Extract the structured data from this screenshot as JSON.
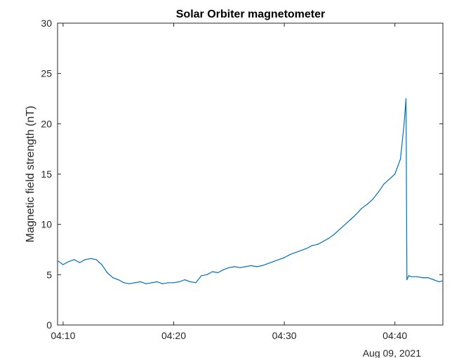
{
  "chart_data": {
    "type": "line",
    "title": "Solar Orbiter magnetometer",
    "xlabel": "",
    "ylabel": "Magnetic field strength (nT)",
    "date_label": "Aug 09, 2021",
    "xlim": [
      "04:09:30",
      "04:44:20"
    ],
    "ylim": [
      0,
      30
    ],
    "yticks": [
      0,
      5,
      10,
      15,
      20,
      25,
      30
    ],
    "xticks": [
      "04:10",
      "04:20",
      "04:30",
      "04:40"
    ],
    "grid": false,
    "line_color": "#0072BD",
    "series": [
      {
        "x": [
          "04:09:30",
          "04:10:00",
          "04:10:30",
          "04:11:00",
          "04:11:30",
          "04:12:00",
          "04:12:30",
          "04:13:00",
          "04:13:30",
          "04:14:00",
          "04:14:30",
          "04:15:00",
          "04:15:30",
          "04:16:00",
          "04:16:30",
          "04:17:00",
          "04:17:30",
          "04:18:00",
          "04:18:30",
          "04:19:00",
          "04:19:30",
          "04:20:00",
          "04:20:30",
          "04:21:00",
          "04:21:30",
          "04:22:00",
          "04:22:30",
          "04:23:00",
          "04:23:30",
          "04:24:00",
          "04:24:30",
          "04:25:00",
          "04:25:30",
          "04:26:00",
          "04:26:30",
          "04:27:00",
          "04:27:30",
          "04:28:00",
          "04:28:30",
          "04:29:00",
          "04:29:30",
          "04:30:00",
          "04:30:30",
          "04:31:00",
          "04:31:30",
          "04:32:00",
          "04:32:30",
          "04:33:00",
          "04:33:30",
          "04:34:00",
          "04:34:30",
          "04:35:00",
          "04:35:30",
          "04:36:00",
          "04:36:30",
          "04:37:00",
          "04:37:30",
          "04:38:00",
          "04:38:30",
          "04:39:00",
          "04:39:30",
          "04:40:00",
          "04:40:30",
          "04:40:50",
          "04:41:00",
          "04:41:05",
          "04:41:15",
          "04:41:30",
          "04:42:00",
          "04:42:30",
          "04:43:00",
          "04:43:30",
          "04:44:00",
          "04:44:20"
        ],
        "values": [
          6.4,
          6.0,
          6.3,
          6.5,
          6.2,
          6.5,
          6.6,
          6.5,
          6.0,
          5.2,
          4.7,
          4.5,
          4.2,
          4.1,
          4.2,
          4.3,
          4.1,
          4.2,
          4.3,
          4.1,
          4.2,
          4.2,
          4.3,
          4.5,
          4.3,
          4.2,
          4.9,
          5.0,
          5.3,
          5.2,
          5.5,
          5.7,
          5.8,
          5.7,
          5.8,
          5.9,
          5.8,
          5.9,
          6.1,
          6.3,
          6.5,
          6.7,
          7.0,
          7.2,
          7.4,
          7.6,
          7.9,
          8.0,
          8.3,
          8.6,
          9.0,
          9.5,
          10.0,
          10.5,
          11.0,
          11.6,
          12.0,
          12.5,
          13.2,
          14.0,
          14.5,
          15.0,
          16.5,
          20.0,
          22.5,
          4.5,
          4.9,
          4.8,
          4.8,
          4.7,
          4.7,
          4.5,
          4.3,
          4.4
        ]
      }
    ]
  }
}
